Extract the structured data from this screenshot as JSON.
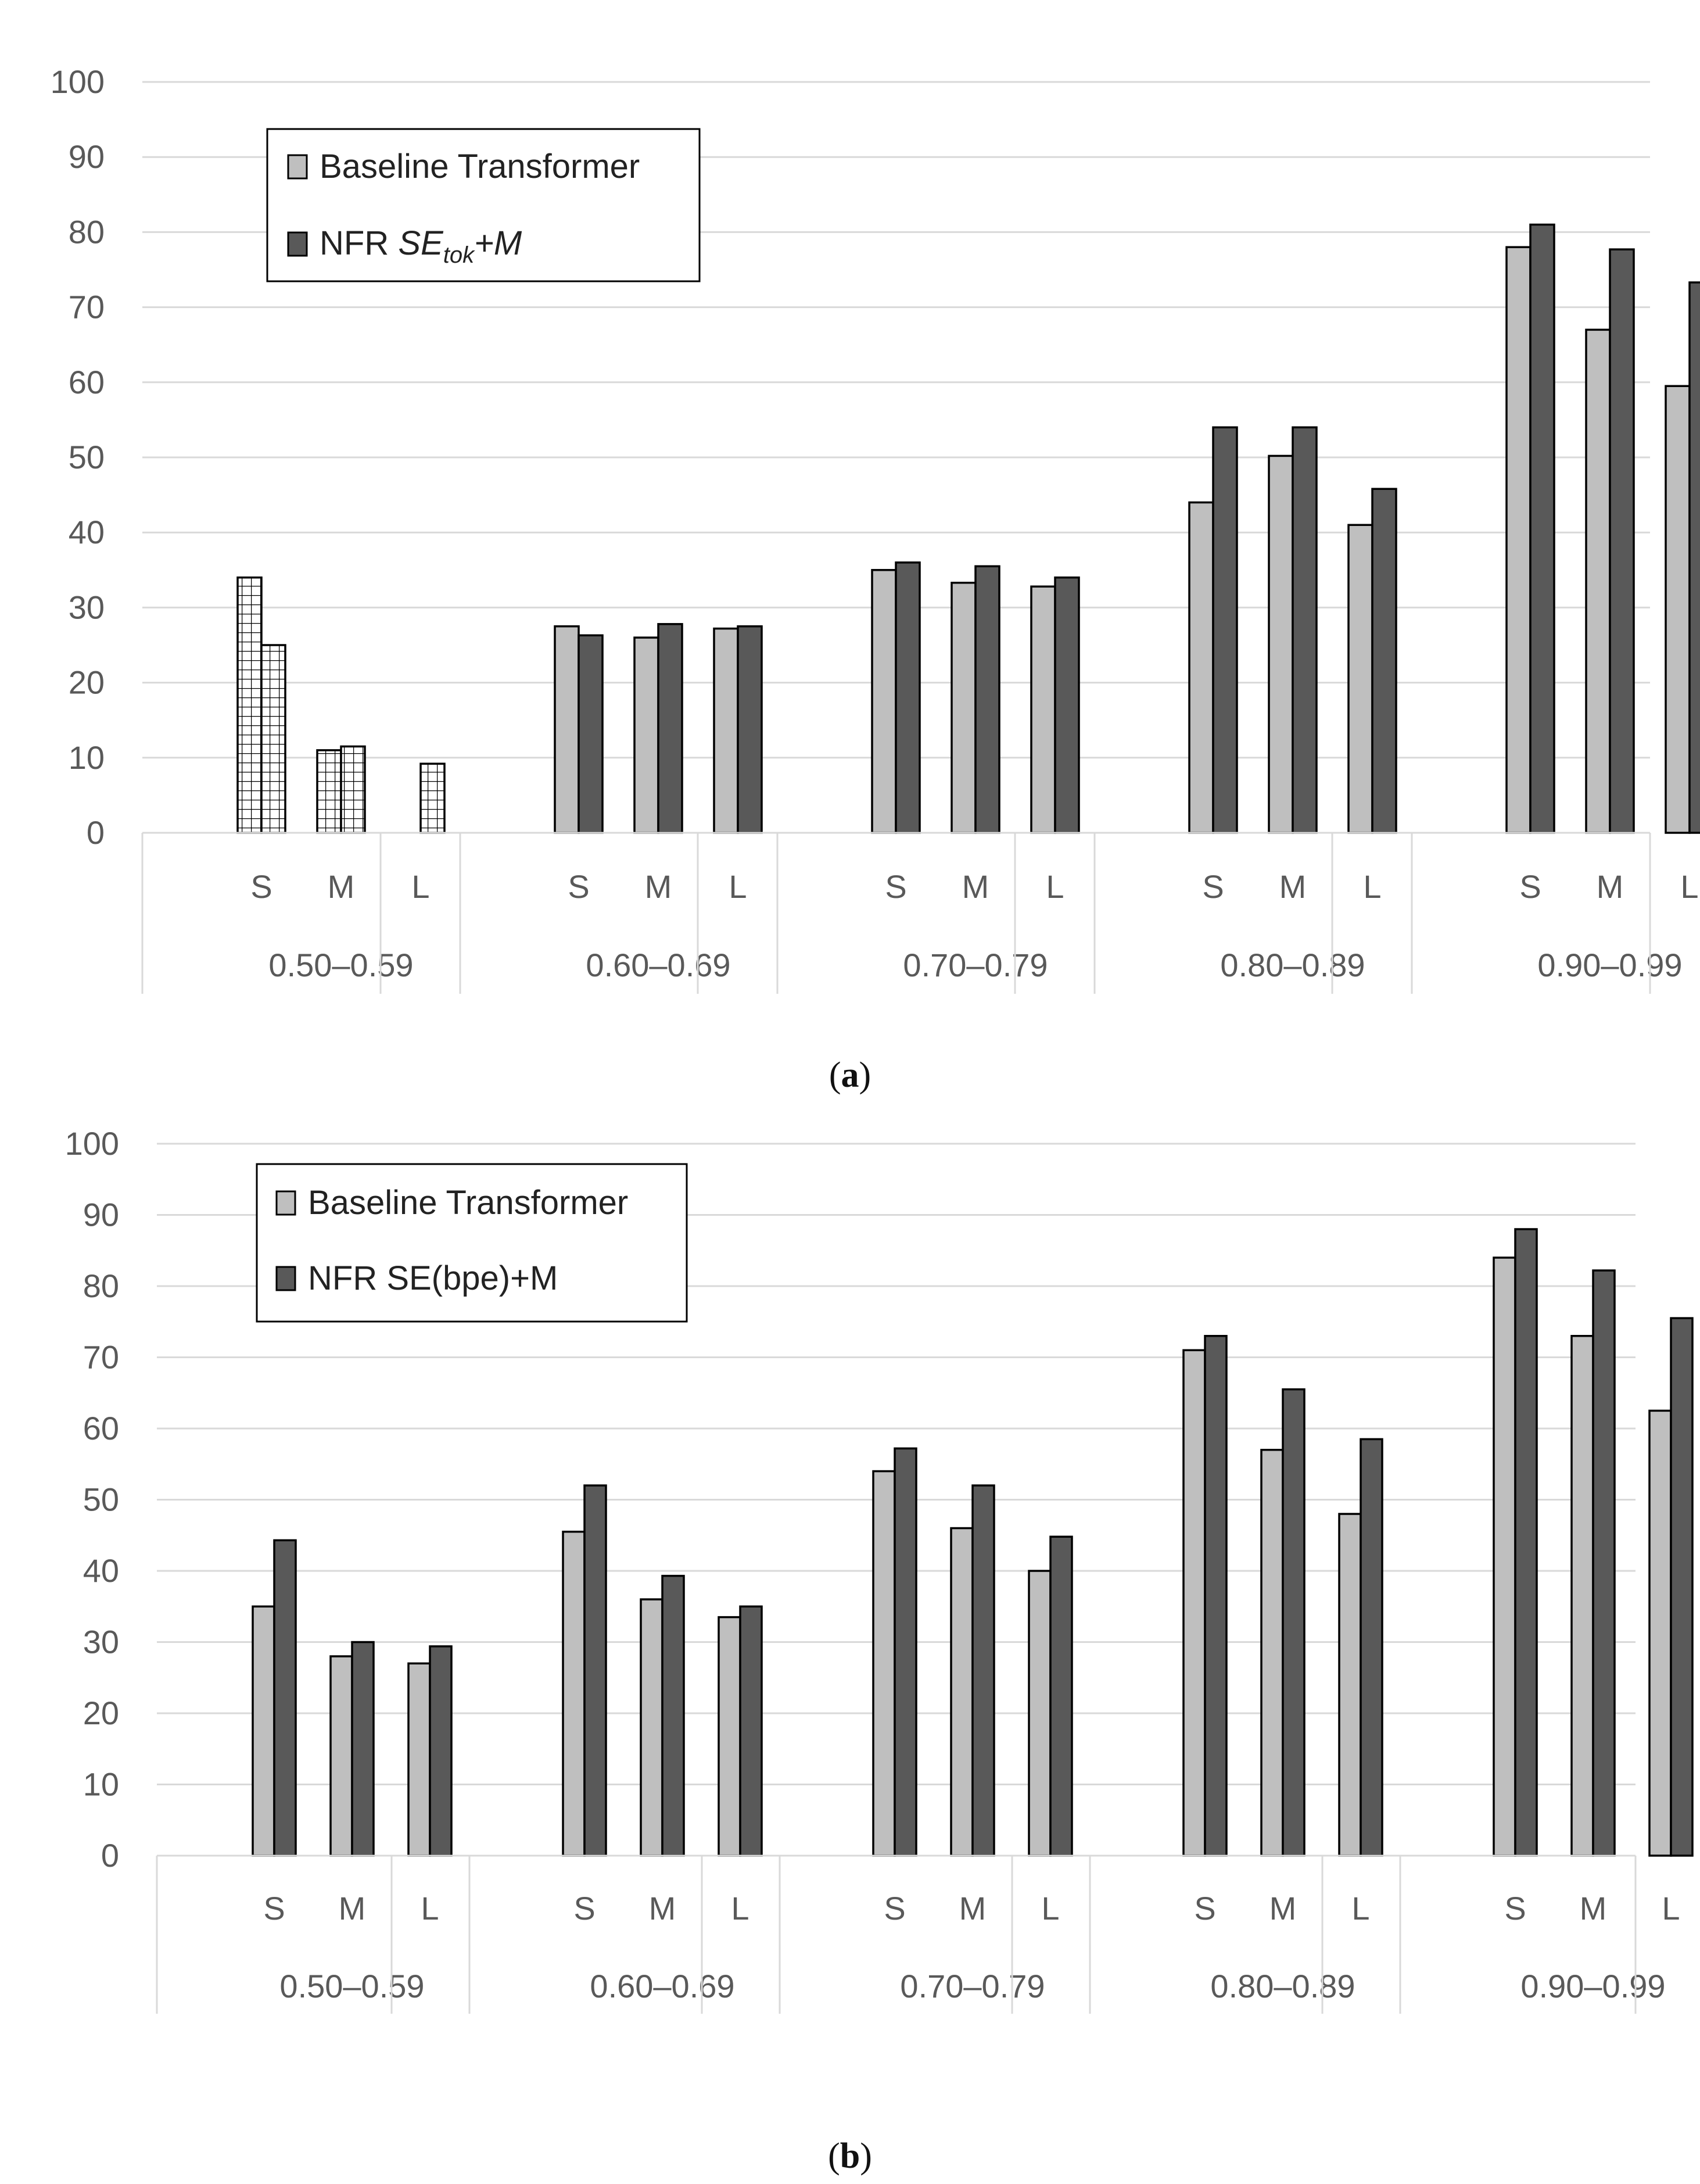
{
  "colors": {
    "baseline": "#bfbfbf",
    "nfr": "#595959",
    "grid": "#d9d9d9",
    "bar_stroke": "#000000"
  },
  "chart_data": [
    {
      "type": "bar",
      "panel_label": "a",
      "title": "",
      "xlabel": "",
      "ylabel": "",
      "ylim": [
        0,
        100
      ],
      "yticks": [
        "0",
        "10",
        "20",
        "30",
        "40",
        "50",
        "60",
        "70",
        "80",
        "90",
        "100"
      ],
      "grid": true,
      "legend_position": "top-left",
      "groups": [
        "0.50–0.59",
        "0.60–0.69",
        "0.70–0.79",
        "0.80–0.89",
        "0.90–0.99"
      ],
      "subcategories": [
        "S",
        "M",
        "L"
      ],
      "legend": {
        "baseline": "Baseline Transformer",
        "nfr_prefix": "NFR ",
        "nfr_se": "SE",
        "nfr_sub": "tok",
        "nfr_suffix": "+M"
      },
      "series": [
        {
          "name": "Baseline Transformer",
          "key": "baseline",
          "values": [
            [
              34,
              11,
              null
            ],
            [
              27.5,
              26,
              27.2
            ],
            [
              35,
              33.3,
              32.8
            ],
            [
              44,
              50.2,
              41
            ],
            [
              78,
              67,
              59.5
            ]
          ]
        },
        {
          "name": "NFR SE_tok+M",
          "key": "nfr",
          "values": [
            [
              25,
              11.5,
              9.2
            ],
            [
              26.3,
              27.8,
              27.5
            ],
            [
              36,
              35.5,
              34
            ],
            [
              54,
              54,
              45.8
            ],
            [
              81,
              77.7,
              73.3
            ]
          ]
        }
      ],
      "hatched": [
        [
          true,
          true,
          true
        ],
        [
          false,
          false,
          false
        ],
        [
          false,
          false,
          false
        ],
        [
          false,
          false,
          false
        ],
        [
          false,
          false,
          false
        ]
      ]
    },
    {
      "type": "bar",
      "panel_label": "b",
      "title": "",
      "xlabel": "",
      "ylabel": "",
      "ylim": [
        0,
        100
      ],
      "yticks": [
        "0",
        "10",
        "20",
        "30",
        "40",
        "50",
        "60",
        "70",
        "80",
        "90",
        "100"
      ],
      "grid": true,
      "legend_position": "top-left",
      "groups": [
        "0.50–0.59",
        "0.60–0.69",
        "0.70–0.79",
        "0.80–0.89",
        "0.90–0.99"
      ],
      "subcategories": [
        "S",
        "M",
        "L"
      ],
      "legend": {
        "baseline": "Baseline Transformer",
        "nfr": "NFR SE(bpe)+M"
      },
      "series": [
        {
          "name": "Baseline Transformer",
          "key": "baseline",
          "values": [
            [
              35,
              28,
              27
            ],
            [
              45.5,
              36,
              33.5
            ],
            [
              54,
              46,
              40
            ],
            [
              71,
              57,
              48
            ],
            [
              84,
              73,
              62.5
            ]
          ]
        },
        {
          "name": "NFR SE(bpe)+M",
          "key": "nfr",
          "values": [
            [
              44.3,
              30,
              29.4
            ],
            [
              52,
              39.3,
              35
            ],
            [
              57.2,
              52,
              44.8
            ],
            [
              73,
              65.5,
              58.5
            ],
            [
              88,
              82.2,
              75.5
            ]
          ]
        }
      ]
    }
  ]
}
